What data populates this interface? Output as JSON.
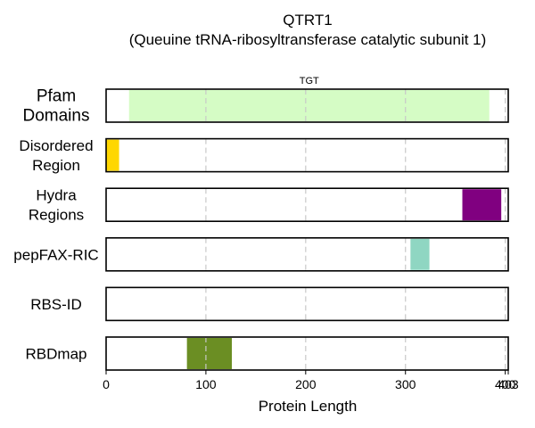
{
  "chart_data": {
    "type": "bar",
    "title": "QTRT1",
    "subtitle": "(Queuine tRNA-ribosyltransferase catalytic subunit 1)",
    "xlabel": "Protein Length",
    "xlim": [
      0,
      403
    ],
    "x_ticks": [
      "0",
      "100",
      "200",
      "300",
      "400",
      "403"
    ],
    "x_tick_values": [
      0,
      100,
      200,
      300,
      400,
      403
    ],
    "grid_lines": [
      100,
      200,
      300,
      400
    ],
    "grid": true,
    "protein_length": 403,
    "tracks": [
      {
        "label_lines": [
          "Pfam",
          "Domains"
        ],
        "features": [
          {
            "label": "TGT",
            "start": 23,
            "end": 384,
            "color": "#d5fcc5"
          }
        ]
      },
      {
        "label_lines": [
          "Disordered",
          "Region"
        ],
        "features": [
          {
            "start": 0,
            "end": 13,
            "color": "#ffd700"
          }
        ]
      },
      {
        "label_lines": [
          "Hydra",
          "Regions"
        ],
        "features": [
          {
            "start": 357,
            "end": 396,
            "color": "#800080"
          }
        ]
      },
      {
        "label_lines": [
          "pepFAX-RIC"
        ],
        "features": [
          {
            "start": 305,
            "end": 324,
            "color": "#8fd6c2"
          }
        ]
      },
      {
        "label_lines": [
          "RBS-ID"
        ],
        "features": []
      },
      {
        "label_lines": [
          "RBDmap"
        ],
        "features": [
          {
            "start": 81,
            "end": 126,
            "color": "#6b8e23"
          }
        ]
      }
    ]
  }
}
